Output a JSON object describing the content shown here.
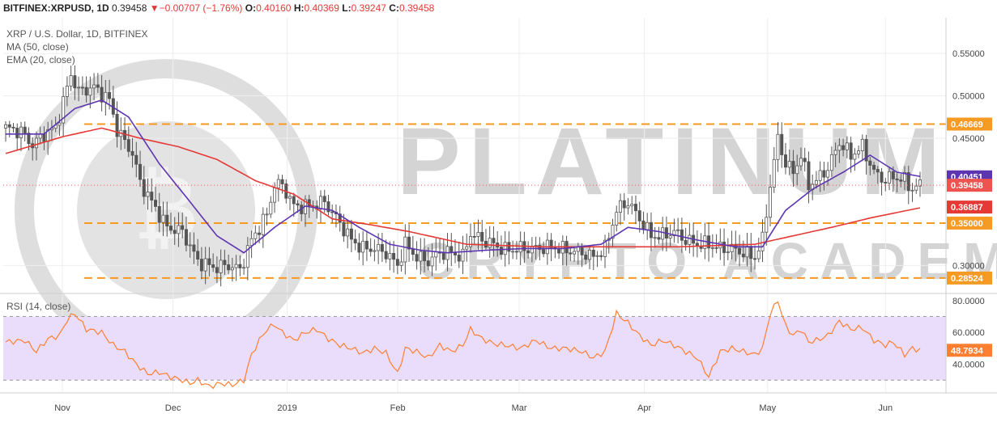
{
  "header": {
    "symbol": "BITFINEX:XRPUSD, 1D",
    "last": "0.39458",
    "change": "−0.00707 (−1.76%)",
    "o_label": "O:",
    "o": "0.40160",
    "h_label": "H:",
    "h": "0.40369",
    "l_label": "L:",
    "l": "0.39247",
    "c_label": "C:",
    "c": "0.39458"
  },
  "legend": {
    "main": "XRP / U.S. Dollar, 1D, BITFINEX",
    "ma": "MA (50, close)",
    "ema": "EMA (20, close)",
    "rsi": "RSI (14, close)"
  },
  "watermark": {
    "line1": "PLATINUM",
    "line2": "CRYPTO ACADEMY"
  },
  "colors": {
    "up": "#26a69a",
    "down": "#ef5350",
    "candle_body": "#555555",
    "ma": "#e53935",
    "ema": "#5e35b1",
    "rsi": "#ff7f32",
    "level": "#f59a23",
    "rsi_band": "#e9ddfb",
    "grid": "#eeeeee"
  },
  "chart_data": [
    {
      "type": "candlestick",
      "title": "XRP / U.S. Dollar, 1D, BITFINEX",
      "x_ticks": [
        "Nov",
        "Dec",
        "2019",
        "Feb",
        "Mar",
        "Apr",
        "May",
        "Jun"
      ],
      "y_ticks": [
        "0.55000",
        "0.50000",
        "0.45000",
        "0.30000"
      ],
      "ylim": [
        0.268,
        0.592
      ],
      "grid": true,
      "levels": [
        {
          "label": "0.46669",
          "value": 0.46669,
          "color": "#f59a23",
          "dashed": true
        },
        {
          "label": "0.35000",
          "value": 0.35,
          "color": "#f59a23",
          "dashed": true
        },
        {
          "label": "0.28524",
          "value": 0.28524,
          "color": "#f59a23",
          "dashed": true
        }
      ],
      "price_markers": [
        {
          "label": "0.40451",
          "value": 0.40451,
          "color": "#5e35b1"
        },
        {
          "label": "0.39458",
          "value": 0.39458,
          "color": "#ef5350"
        },
        {
          "label": "0.36887",
          "value": 0.36887,
          "color": "#e53935"
        }
      ],
      "close_path": [
        [
          0,
          0.462
        ],
        [
          4,
          0.458
        ],
        [
          7,
          0.442
        ],
        [
          10,
          0.455
        ],
        [
          13,
          0.462
        ],
        [
          17,
          0.525
        ],
        [
          19,
          0.505
        ],
        [
          23,
          0.51
        ],
        [
          27,
          0.495
        ],
        [
          29,
          0.46
        ],
        [
          33,
          0.432
        ],
        [
          35,
          0.398
        ],
        [
          38,
          0.375
        ],
        [
          42,
          0.345
        ],
        [
          46,
          0.34
        ],
        [
          50,
          0.305
        ],
        [
          54,
          0.298
        ],
        [
          58,
          0.3
        ],
        [
          61,
          0.295
        ],
        [
          64,
          0.33
        ],
        [
          68,
          0.36
        ],
        [
          70,
          0.395
        ],
        [
          72,
          0.395
        ],
        [
          75,
          0.37
        ],
        [
          79,
          0.37
        ],
        [
          83,
          0.375
        ],
        [
          87,
          0.35
        ],
        [
          90,
          0.33
        ],
        [
          93,
          0.32
        ],
        [
          96,
          0.32
        ],
        [
          99,
          0.315
        ],
        [
          102,
          0.3
        ],
        [
          104,
          0.325
        ],
        [
          107,
          0.31
        ],
        [
          110,
          0.305
        ],
        [
          113,
          0.315
        ],
        [
          116,
          0.315
        ],
        [
          119,
          0.31
        ],
        [
          121,
          0.338
        ],
        [
          124,
          0.33
        ],
        [
          127,
          0.325
        ],
        [
          130,
          0.318
        ],
        [
          134,
          0.32
        ],
        [
          138,
          0.32
        ],
        [
          142,
          0.322
        ],
        [
          146,
          0.318
        ],
        [
          150,
          0.315
        ],
        [
          153,
          0.31
        ],
        [
          156,
          0.32
        ],
        [
          159,
          0.365
        ],
        [
          162,
          0.375
        ],
        [
          165,
          0.355
        ],
        [
          168,
          0.335
        ],
        [
          171,
          0.335
        ],
        [
          174,
          0.34
        ],
        [
          177,
          0.33
        ],
        [
          180,
          0.325
        ],
        [
          183,
          0.325
        ],
        [
          186,
          0.32
        ],
        [
          189,
          0.32
        ],
        [
          192,
          0.315
        ],
        [
          195,
          0.31
        ],
        [
          197,
          0.33
        ],
        [
          199,
          0.395
        ],
        [
          201,
          0.45
        ],
        [
          203,
          0.42
        ],
        [
          205,
          0.41
        ],
        [
          207,
          0.43
        ],
        [
          209,
          0.395
        ],
        [
          211,
          0.4
        ],
        [
          214,
          0.415
        ],
        [
          217,
          0.445
        ],
        [
          220,
          0.43
        ],
        [
          223,
          0.44
        ],
        [
          226,
          0.41
        ],
        [
          229,
          0.4
        ],
        [
          231,
          0.405
        ],
        [
          234,
          0.4
        ],
        [
          236,
          0.39
        ],
        [
          238,
          0.395
        ]
      ],
      "ma_path": [
        [
          0,
          0.432
        ],
        [
          15,
          0.452
        ],
        [
          25,
          0.462
        ],
        [
          35,
          0.45
        ],
        [
          45,
          0.44
        ],
        [
          55,
          0.425
        ],
        [
          65,
          0.4
        ],
        [
          75,
          0.384
        ],
        [
          85,
          0.355
        ],
        [
          95,
          0.348
        ],
        [
          105,
          0.34
        ],
        [
          120,
          0.325
        ],
        [
          140,
          0.322
        ],
        [
          160,
          0.322
        ],
        [
          175,
          0.322
        ],
        [
          195,
          0.325
        ],
        [
          205,
          0.335
        ],
        [
          215,
          0.345
        ],
        [
          225,
          0.356
        ],
        [
          238,
          0.368
        ]
      ],
      "ema_path": [
        [
          0,
          0.455
        ],
        [
          10,
          0.455
        ],
        [
          18,
          0.485
        ],
        [
          25,
          0.495
        ],
        [
          32,
          0.475
        ],
        [
          40,
          0.42
        ],
        [
          48,
          0.375
        ],
        [
          55,
          0.335
        ],
        [
          62,
          0.315
        ],
        [
          70,
          0.345
        ],
        [
          78,
          0.37
        ],
        [
          85,
          0.365
        ],
        [
          92,
          0.345
        ],
        [
          100,
          0.325
        ],
        [
          108,
          0.318
        ],
        [
          115,
          0.315
        ],
        [
          125,
          0.318
        ],
        [
          135,
          0.32
        ],
        [
          145,
          0.32
        ],
        [
          155,
          0.325
        ],
        [
          162,
          0.345
        ],
        [
          170,
          0.34
        ],
        [
          180,
          0.33
        ],
        [
          190,
          0.322
        ],
        [
          197,
          0.322
        ],
        [
          203,
          0.365
        ],
        [
          210,
          0.39
        ],
        [
          218,
          0.41
        ],
        [
          225,
          0.43
        ],
        [
          232,
          0.41
        ],
        [
          238,
          0.405
        ]
      ]
    },
    {
      "type": "line",
      "title": "RSI (14, close)",
      "y_ticks": [
        "80.0000",
        "60.0000",
        "40.0000"
      ],
      "ylim": [
        22,
        84
      ],
      "band": [
        30,
        70
      ],
      "current_label": "48.7934",
      "series": [
        {
          "values": [
            [
              0,
              54
            ],
            [
              5,
              55
            ],
            [
              8,
              48
            ],
            [
              11,
              56
            ],
            [
              14,
              58
            ],
            [
              16,
              68
            ],
            [
              18,
              72
            ],
            [
              21,
              62
            ],
            [
              25,
              60
            ],
            [
              28,
              52
            ],
            [
              31,
              48
            ],
            [
              34,
              40
            ],
            [
              37,
              34
            ],
            [
              40,
              35
            ],
            [
              43,
              32
            ],
            [
              46,
              30
            ],
            [
              48,
              28
            ],
            [
              50,
              30
            ],
            [
              53,
              26
            ],
            [
              56,
              28
            ],
            [
              59,
              27
            ],
            [
              62,
              30
            ],
            [
              64,
              46
            ],
            [
              66,
              55
            ],
            [
              68,
              62
            ],
            [
              70,
              65
            ],
            [
              72,
              60
            ],
            [
              75,
              55
            ],
            [
              78,
              60
            ],
            [
              81,
              62
            ],
            [
              84,
              56
            ],
            [
              87,
              52
            ],
            [
              90,
              50
            ],
            [
              93,
              47
            ],
            [
              96,
              50
            ],
            [
              99,
              47
            ],
            [
              102,
              34
            ],
            [
              104,
              50
            ],
            [
              107,
              48
            ],
            [
              110,
              44
            ],
            [
              113,
              52
            ],
            [
              116,
              48
            ],
            [
              119,
              52
            ],
            [
              121,
              62
            ],
            [
              124,
              56
            ],
            [
              127,
              53
            ],
            [
              130,
              52
            ],
            [
              134,
              50
            ],
            [
              138,
              55
            ],
            [
              142,
              50
            ],
            [
              146,
              50
            ],
            [
              150,
              48
            ],
            [
              153,
              44
            ],
            [
              156,
              48
            ],
            [
              159,
              72
            ],
            [
              162,
              66
            ],
            [
              165,
              58
            ],
            [
              168,
              52
            ],
            [
              171,
              55
            ],
            [
              174,
              52
            ],
            [
              177,
              48
            ],
            [
              180,
              44
            ],
            [
              183,
              32
            ],
            [
              186,
              48
            ],
            [
              189,
              50
            ],
            [
              192,
              48
            ],
            [
              195,
              46
            ],
            [
              197,
              50
            ],
            [
              199,
              72
            ],
            [
              201,
              80
            ],
            [
              203,
              64
            ],
            [
              205,
              58
            ],
            [
              207,
              62
            ],
            [
              209,
              54
            ],
            [
              211,
              55
            ],
            [
              214,
              58
            ],
            [
              217,
              67
            ],
            [
              220,
              62
            ],
            [
              223,
              63
            ],
            [
              226,
              55
            ],
            [
              229,
              52
            ],
            [
              231,
              54
            ],
            [
              234,
              46
            ],
            [
              236,
              50
            ],
            [
              238,
              48.8
            ]
          ]
        }
      ]
    }
  ]
}
